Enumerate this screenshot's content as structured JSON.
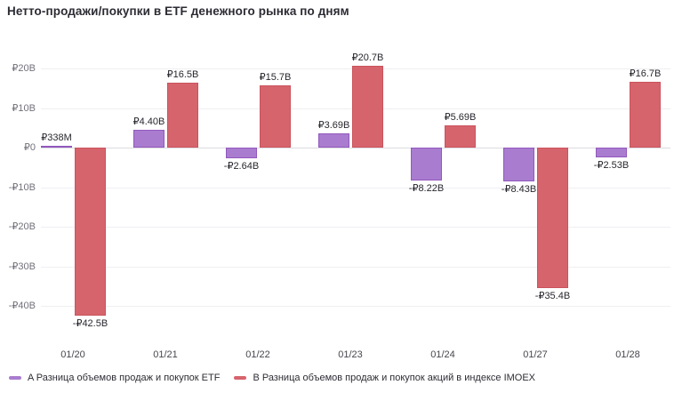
{
  "page": {
    "background": "#ffffff"
  },
  "chart_data": {
    "type": "bar",
    "title": "Нетто-продажи/покупки в ETF денежного рынка по дням",
    "categories": [
      "01/20",
      "01/21",
      "01/22",
      "01/23",
      "01/24",
      "01/27",
      "01/28"
    ],
    "series": [
      {
        "name": "A Разница объемов продаж и покупок ETF",
        "color": "#a97ccf",
        "border_color": "#9258bd",
        "values_billions": [
          0.338,
          4.4,
          -2.64,
          3.69,
          -8.22,
          -8.43,
          -2.53
        ],
        "value_labels": [
          "₽338M",
          "₽4.40B",
          "-₽2.64B",
          "₽3.69B",
          "-₽8.22B",
          "-₽8.43B",
          "-₽2.53B"
        ]
      },
      {
        "name": "B Разница объемов продаж и покупок акций в индексе IMOEX",
        "color": "#d6646d",
        "border_color": "#ca535d",
        "values_billions": [
          -42.5,
          16.5,
          15.7,
          20.7,
          5.69,
          -35.4,
          16.7
        ],
        "value_labels": [
          "-₽42.5B",
          "₽16.5B",
          "₽15.7B",
          "₽20.7B",
          "₽5.69B",
          "-₽35.4B",
          "₽16.7B"
        ]
      }
    ],
    "y_axis": {
      "ticks": [
        20,
        10,
        0,
        -10,
        -20,
        -30,
        -40
      ],
      "tick_labels": [
        "₽20B",
        "₽10B",
        "₽0",
        "-₽10B",
        "-₽20B",
        "-₽30B",
        "-₽40B"
      ]
    },
    "ylim": [
      -45,
      23
    ],
    "grid": true,
    "legend_position": "bottom-left"
  }
}
